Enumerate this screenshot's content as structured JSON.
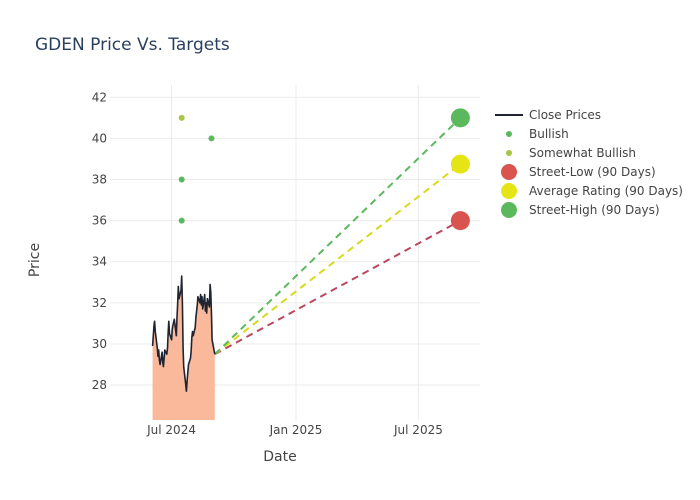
{
  "chart_data": {
    "type": "line",
    "title": "GDEN Price Vs. Targets",
    "xlabel": "Date",
    "ylabel": "Price",
    "x_axis": {
      "type": "date",
      "range": [
        "2024-04-01",
        "2025-09-30"
      ],
      "ticks": [
        {
          "date": "2024-07-01",
          "label": "Jul 2024"
        },
        {
          "date": "2025-01-01",
          "label": "Jan 2025"
        },
        {
          "date": "2025-07-01",
          "label": "Jul 2025"
        }
      ]
    },
    "y_axis": {
      "range": [
        26.3,
        42.6
      ],
      "ticks": [
        28,
        30,
        32,
        34,
        36,
        38,
        40,
        42
      ]
    },
    "grid": true,
    "legend_position": "right",
    "series": [
      {
        "name": "Close Prices",
        "kind": "line-area",
        "color": "#1f2430",
        "fill_color": "#f9b99a",
        "points": [
          [
            "2024-06-03",
            29.9
          ],
          [
            "2024-06-04",
            30.4
          ],
          [
            "2024-06-05",
            30.9
          ],
          [
            "2024-06-06",
            31.1
          ],
          [
            "2024-06-07",
            30.6
          ],
          [
            "2024-06-10",
            29.8
          ],
          [
            "2024-06-11",
            29.4
          ],
          [
            "2024-06-12",
            29.7
          ],
          [
            "2024-06-13",
            29.2
          ],
          [
            "2024-06-14",
            29.0
          ],
          [
            "2024-06-17",
            29.6
          ],
          [
            "2024-06-18",
            29.1
          ],
          [
            "2024-06-19",
            28.9
          ],
          [
            "2024-06-20",
            29.3
          ],
          [
            "2024-06-21",
            29.7
          ],
          [
            "2024-06-24",
            29.5
          ],
          [
            "2024-06-25",
            29.8
          ],
          [
            "2024-06-26",
            30.6
          ],
          [
            "2024-06-27",
            31.1
          ],
          [
            "2024-06-28",
            30.5
          ],
          [
            "2024-07-01",
            30.2
          ],
          [
            "2024-07-02",
            30.7
          ],
          [
            "2024-07-03",
            30.9
          ],
          [
            "2024-07-05",
            31.2
          ],
          [
            "2024-07-08",
            30.4
          ],
          [
            "2024-07-09",
            31.3
          ],
          [
            "2024-07-10",
            31.9
          ],
          [
            "2024-07-11",
            32.8
          ],
          [
            "2024-07-12",
            32.2
          ],
          [
            "2024-07-15",
            32.6
          ],
          [
            "2024-07-16",
            33.3
          ],
          [
            "2024-07-17",
            32.0
          ],
          [
            "2024-07-18",
            29.8
          ],
          [
            "2024-07-19",
            28.9
          ],
          [
            "2024-07-22",
            28.0
          ],
          [
            "2024-07-23",
            27.7
          ],
          [
            "2024-07-24",
            28.2
          ],
          [
            "2024-07-25",
            28.6
          ],
          [
            "2024-07-26",
            29.0
          ],
          [
            "2024-07-29",
            29.3
          ],
          [
            "2024-07-30",
            29.7
          ],
          [
            "2024-07-31",
            30.3
          ],
          [
            "2024-08-01",
            30.6
          ],
          [
            "2024-08-02",
            30.4
          ],
          [
            "2024-08-05",
            30.8
          ],
          [
            "2024-08-06",
            31.3
          ],
          [
            "2024-08-07",
            31.6
          ],
          [
            "2024-08-08",
            31.9
          ],
          [
            "2024-08-09",
            32.3
          ],
          [
            "2024-08-12",
            32.0
          ],
          [
            "2024-08-13",
            32.4
          ],
          [
            "2024-08-14",
            31.9
          ],
          [
            "2024-08-15",
            32.3
          ],
          [
            "2024-08-16",
            31.7
          ],
          [
            "2024-08-19",
            32.4
          ],
          [
            "2024-08-20",
            31.6
          ],
          [
            "2024-08-21",
            32.0
          ],
          [
            "2024-08-22",
            31.5
          ],
          [
            "2024-08-23",
            32.2
          ],
          [
            "2024-08-26",
            31.8
          ],
          [
            "2024-08-27",
            32.9
          ],
          [
            "2024-08-28",
            32.5
          ],
          [
            "2024-08-29",
            31.4
          ],
          [
            "2024-08-30",
            30.2
          ],
          [
            "2024-09-03",
            29.5
          ]
        ]
      },
      {
        "name": "Bullish",
        "kind": "markers",
        "color": "#5cb85c",
        "points": [
          [
            "2024-07-16",
            38
          ],
          [
            "2024-07-16",
            36
          ],
          [
            "2024-08-29",
            40
          ]
        ]
      },
      {
        "name": "Somewhat Bullish",
        "kind": "markers",
        "color": "#a8c545",
        "points": [
          [
            "2024-07-16",
            41
          ]
        ]
      },
      {
        "name": "Street-Low (90 Days)",
        "kind": "target",
        "color": "#d9534f",
        "line_color": "#b9485e",
        "from": [
          "2024-09-03",
          29.5
        ],
        "to": [
          "2025-09-01",
          36
        ]
      },
      {
        "name": "Average Rating (90 Days)",
        "kind": "target",
        "color": "#e5e515",
        "line_color": "#d6db1c",
        "from": [
          "2024-09-03",
          29.5
        ],
        "to": [
          "2025-09-01",
          38.75
        ]
      },
      {
        "name": "Street-High (90 Days)",
        "kind": "target",
        "color": "#5cb85c",
        "line_color": "#5cb85c",
        "from": [
          "2024-09-03",
          29.5
        ],
        "to": [
          "2025-09-01",
          41
        ]
      }
    ]
  }
}
